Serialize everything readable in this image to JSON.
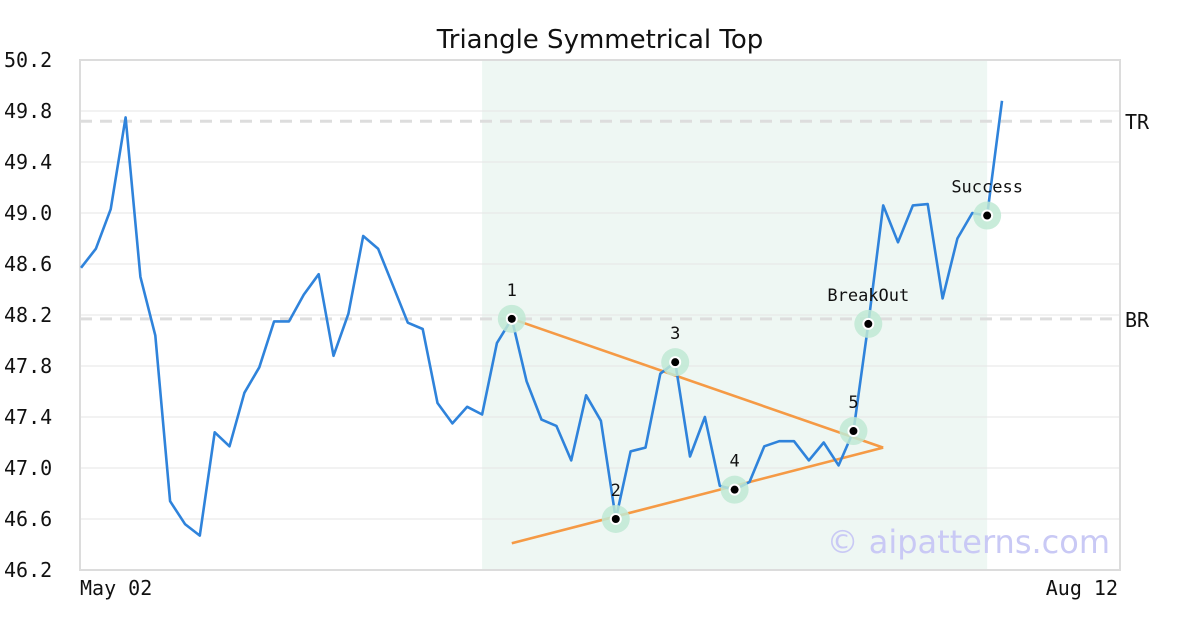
{
  "chart_data": {
    "type": "line",
    "title": "Triangle Symmetrical Top",
    "xlabel": "",
    "ylabel": "",
    "x_tick_labels": [
      "May 02",
      "Aug 12"
    ],
    "ylim": [
      46.2,
      50.2
    ],
    "y_ticks": [
      "46.2",
      "46.6",
      "47.0",
      "47.4",
      "47.8",
      "48.2",
      "48.6",
      "49.0",
      "49.4",
      "49.8",
      "50.2"
    ],
    "grid": "horizontal",
    "series": [
      {
        "color": "#2f83db",
        "values": [
          48.57,
          48.72,
          49.03,
          49.75,
          48.5,
          48.04,
          46.74,
          46.56,
          46.47,
          47.28,
          47.17,
          47.59,
          47.79,
          48.15,
          48.15,
          48.36,
          48.52,
          47.88,
          48.21,
          48.82,
          48.72,
          48.43,
          48.14,
          48.09,
          47.51,
          47.35,
          47.48,
          47.42,
          47.98,
          48.17,
          47.68,
          47.38,
          47.33,
          47.06,
          47.57,
          47.37,
          46.6,
          47.13,
          47.16,
          47.74,
          47.83,
          47.09,
          47.4,
          46.86,
          46.83,
          46.89,
          47.17,
          47.21,
          47.21,
          47.06,
          47.2,
          47.02,
          47.29,
          48.13,
          49.06,
          48.77,
          49.06,
          49.07,
          48.33,
          48.8,
          49.0,
          48.98,
          49.88
        ]
      }
    ],
    "reference_lines": [
      {
        "label": "TR",
        "value": 49.72
      },
      {
        "label": "BR",
        "value": 48.17
      }
    ],
    "highlight_region": {
      "start_index": 27,
      "end_index": 61
    },
    "pattern_points": [
      {
        "label": "1",
        "index": 29,
        "value": 48.17
      },
      {
        "label": "2",
        "index": 36,
        "value": 46.6
      },
      {
        "label": "3",
        "index": 40,
        "value": 47.83
      },
      {
        "label": "4",
        "index": 44,
        "value": 46.83
      },
      {
        "label": "5",
        "index": 52,
        "value": 47.29
      },
      {
        "label": "BreakOut",
        "index": 53,
        "value": 48.13
      },
      {
        "label": "Success",
        "index": 61,
        "value": 48.98
      }
    ],
    "trendlines": [
      {
        "color": "#f59a45",
        "from": {
          "index": 29,
          "value": 48.17
        },
        "to": {
          "index": 54,
          "value": 47.16
        }
      },
      {
        "color": "#f59a45",
        "from": {
          "index": 29,
          "value": 46.41
        },
        "to": {
          "index": 54,
          "value": 47.16
        }
      }
    ],
    "watermark": "© aipatterns.com",
    "colors": {
      "line": "#2f83db",
      "trend": "#f59a45",
      "region": "#eef7f3",
      "marker_halo": "#bfe9d3",
      "reference": "#dddddd"
    }
  }
}
